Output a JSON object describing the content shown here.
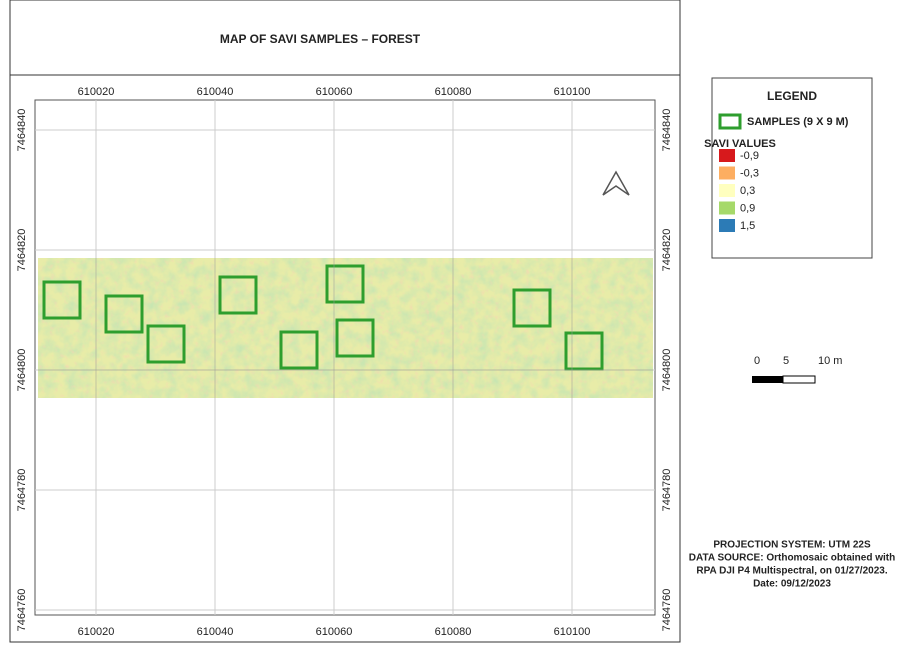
{
  "title": "MAP OF SAVI SAMPLES – FOREST",
  "x_coords": [
    610020,
    610040,
    610060,
    610080,
    610100
  ],
  "y_coords": [
    7464840,
    7464820,
    7464800,
    7464780,
    7464760
  ],
  "legend": {
    "title": "LEGEND",
    "samples": "SAMPLES (9 X 9 M)",
    "savi_title": "SAVI VALUES",
    "items": [
      {
        "label": "-0,9",
        "color": "#d7191c"
      },
      {
        "label": "-0,3",
        "color": "#fdae61"
      },
      {
        "label": "0,3",
        "color": "#ffffbf"
      },
      {
        "label": "0,9",
        "color": "#a6d96a"
      },
      {
        "label": "1,5",
        "color": "#2c7bb6"
      }
    ]
  },
  "scale": [
    "0",
    "5",
    "10 m"
  ],
  "footer": [
    "PROJECTION SYSTEM: UTM 22S",
    "DATA SOURCE: Orthomosaic obtained with",
    "RPA DJI P4 Multispectral, on 01/27/2023.",
    "Date: 09/12/2023"
  ]
}
